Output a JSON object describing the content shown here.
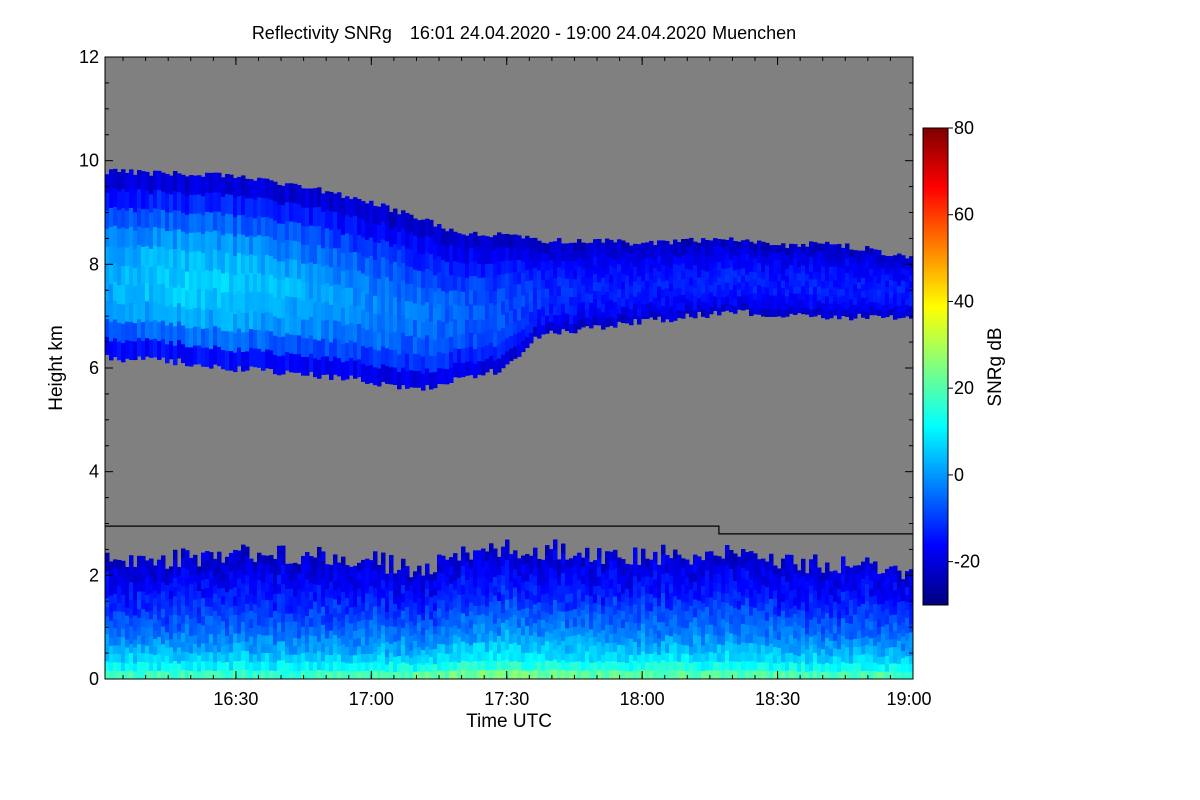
{
  "chart_data": {
    "type": "heatmap",
    "title": "Reflectivity SNRg",
    "time_range": "16:01 24.04.2020 - 19:00 24.04.2020",
    "station": "Muenchen",
    "xlabel": "Time UTC",
    "ylabel": "Height km",
    "xlim_minutes_utc": [
      961,
      1140
    ],
    "ylim": [
      0,
      12
    ],
    "x_ticks": [
      {
        "label": "16:30",
        "minutes": 990
      },
      {
        "label": "17:00",
        "minutes": 1020
      },
      {
        "label": "17:30",
        "minutes": 1050
      },
      {
        "label": "18:00",
        "minutes": 1080
      },
      {
        "label": "18:30",
        "minutes": 1110
      },
      {
        "label": "19:00",
        "minutes": 1140
      }
    ],
    "y_ticks": [
      0,
      2,
      4,
      6,
      8,
      10,
      12
    ],
    "colorbar": {
      "label": "SNRg dB",
      "range": [
        -30,
        80
      ],
      "ticks": [
        -20,
        0,
        20,
        40,
        60,
        80
      ],
      "colormap": [
        "#00007f",
        "#0000ff",
        "#0080ff",
        "#00ffff",
        "#80ff80",
        "#ffff00",
        "#ff8000",
        "#ff0000",
        "#7f0000"
      ]
    },
    "background_color": "#808080",
    "cloud_upper": {
      "description_note": "ice cloud layer",
      "time_minutes": [
        961,
        975,
        990,
        1005,
        1020,
        1030,
        1040,
        1050,
        1055,
        1060,
        1070,
        1080,
        1090,
        1100,
        1110,
        1120,
        1130,
        1140
      ],
      "top_km": [
        9.8,
        9.75,
        9.7,
        9.5,
        9.2,
        8.9,
        8.6,
        8.55,
        8.5,
        8.45,
        8.45,
        8.4,
        8.45,
        8.5,
        8.35,
        8.4,
        8.3,
        8.1
      ],
      "base_km": [
        6.2,
        6.15,
        6.0,
        5.9,
        5.75,
        5.6,
        5.8,
        6.0,
        6.5,
        6.7,
        6.8,
        6.9,
        7.0,
        7.1,
        7.05,
        7.0,
        7.0,
        6.95
      ],
      "core_snr_db": [
        2,
        6,
        6,
        2,
        -2,
        -4,
        -6,
        -8,
        -10,
        -12,
        -13,
        -14,
        -14,
        -13,
        -14,
        -13,
        -14,
        -14
      ]
    },
    "cloud_lower": {
      "description_note": "boundary layer echoes",
      "time_minutes": [
        961,
        975,
        990,
        1005,
        1020,
        1030,
        1040,
        1050,
        1060,
        1070,
        1080,
        1090,
        1100,
        1110,
        1120,
        1130,
        1140
      ],
      "top_km": [
        2.5,
        2.5,
        2.6,
        2.6,
        2.5,
        2.3,
        2.6,
        2.7,
        2.7,
        2.6,
        2.6,
        2.6,
        2.6,
        2.5,
        2.4,
        2.4,
        2.3
      ],
      "surface_snr_db": [
        30,
        30,
        28,
        28,
        30,
        32,
        36,
        38,
        36,
        34,
        34,
        34,
        32,
        32,
        30,
        30,
        30
      ]
    },
    "threshold_line": {
      "time_minutes": [
        961,
        1097,
        1097,
        1140
      ],
      "height_km": [
        2.95,
        2.95,
        2.8,
        2.8
      ]
    }
  }
}
